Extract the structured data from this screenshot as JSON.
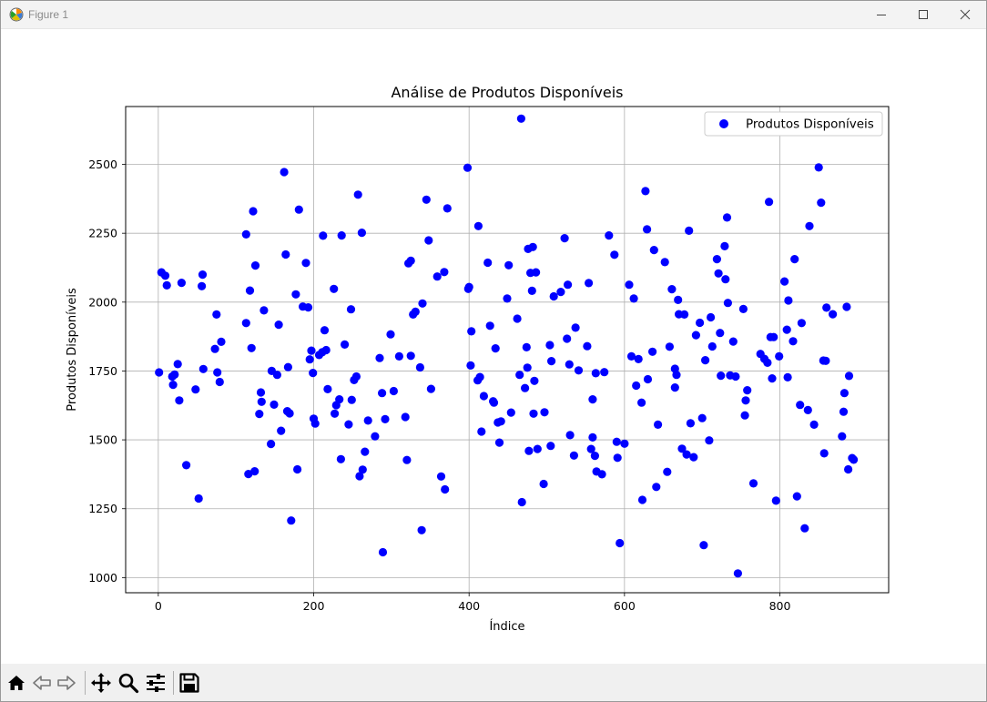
{
  "window": {
    "title": "Figure 1"
  },
  "toolbar": {
    "items": [
      "home-icon",
      "back-icon",
      "forward-icon",
      "pan-icon",
      "zoom-icon",
      "configure-subplots-icon",
      "save-icon"
    ]
  },
  "colors": {
    "marker": "#0000ff",
    "grid": "#b0b0b0",
    "axes": "#000000"
  },
  "chart_data": {
    "type": "scatter",
    "title": "Análise de Produtos Disponíveis",
    "xlabel": "Índice",
    "ylabel": "Produtos Disponíveis",
    "xlim": [
      -42,
      940
    ],
    "ylim": [
      945,
      2710
    ],
    "xticks": [
      0,
      200,
      400,
      600,
      800
    ],
    "yticks": [
      1000,
      1250,
      1500,
      1750,
      2000,
      2250,
      2500
    ],
    "grid": true,
    "legend": {
      "position": "top-right",
      "entries": [
        "Produtos Disponíveis"
      ]
    },
    "series": [
      {
        "name": "Produtos Disponíveis",
        "color": "#0000ff",
        "points": [
          [
            1,
            1745
          ],
          [
            4,
            2108
          ],
          [
            9,
            2096
          ],
          [
            11,
            2061
          ],
          [
            18,
            1730
          ],
          [
            19,
            1700
          ],
          [
            21,
            1737
          ],
          [
            25,
            1775
          ],
          [
            27,
            1643
          ],
          [
            30,
            2070
          ],
          [
            36,
            1408
          ],
          [
            48,
            1683
          ],
          [
            52,
            1287
          ],
          [
            56,
            2058
          ],
          [
            57,
            2100
          ],
          [
            58,
            1757
          ],
          [
            73,
            1830
          ],
          [
            75,
            1955
          ],
          [
            76,
            1745
          ],
          [
            79,
            1710
          ],
          [
            81,
            1856
          ],
          [
            113,
            1924
          ],
          [
            113,
            2246
          ],
          [
            116,
            1376
          ],
          [
            118,
            2042
          ],
          [
            120,
            1833
          ],
          [
            122,
            2330
          ],
          [
            124,
            1386
          ],
          [
            125,
            2133
          ],
          [
            130,
            1594
          ],
          [
            132,
            1672
          ],
          [
            133,
            1638
          ],
          [
            136,
            1970
          ],
          [
            145,
            1485
          ],
          [
            146,
            1750
          ],
          [
            149,
            1628
          ],
          [
            153,
            1736
          ],
          [
            155,
            1918
          ],
          [
            158,
            1533
          ],
          [
            162,
            2472
          ],
          [
            164,
            2173
          ],
          [
            166,
            1604
          ],
          [
            167,
            1764
          ],
          [
            169,
            1596
          ],
          [
            171,
            1207
          ],
          [
            177,
            2028
          ],
          [
            179,
            1393
          ],
          [
            181,
            2336
          ],
          [
            186,
            1984
          ],
          [
            190,
            2142
          ],
          [
            193,
            1981
          ],
          [
            195,
            1792
          ],
          [
            197,
            1824
          ],
          [
            199,
            1743
          ],
          [
            200,
            1577
          ],
          [
            202,
            1559
          ],
          [
            207,
            1808
          ],
          [
            211,
            1818
          ],
          [
            212,
            2241
          ],
          [
            214,
            1898
          ],
          [
            216,
            1826
          ],
          [
            218,
            1684
          ],
          [
            226,
            2048
          ],
          [
            227,
            1595
          ],
          [
            229,
            1626
          ],
          [
            233,
            1647
          ],
          [
            235,
            1430
          ],
          [
            236,
            2242
          ],
          [
            240,
            1846
          ],
          [
            245,
            1556
          ],
          [
            248,
            1974
          ],
          [
            249,
            1645
          ],
          [
            252,
            1717
          ],
          [
            255,
            1730
          ],
          [
            257,
            2390
          ],
          [
            259,
            1368
          ],
          [
            262,
            2252
          ],
          [
            263,
            1392
          ],
          [
            266,
            1457
          ],
          [
            270,
            1570
          ],
          [
            279,
            1513
          ],
          [
            285,
            1797
          ],
          [
            288,
            1670
          ],
          [
            289,
            1092
          ],
          [
            292,
            1575
          ],
          [
            299,
            1883
          ],
          [
            303,
            1677
          ],
          [
            310,
            1803
          ],
          [
            318,
            1583
          ],
          [
            320,
            1427
          ],
          [
            322,
            2141
          ],
          [
            325,
            1805
          ],
          [
            325,
            2150
          ],
          [
            328,
            1955
          ],
          [
            331,
            1965
          ],
          [
            337,
            1763
          ],
          [
            339,
            1172
          ],
          [
            340,
            1995
          ],
          [
            345,
            2372
          ],
          [
            348,
            2224
          ],
          [
            351,
            1685
          ],
          [
            359,
            2093
          ],
          [
            364,
            1367
          ],
          [
            368,
            2109
          ],
          [
            369,
            1320
          ],
          [
            372,
            2340
          ],
          [
            398,
            2488
          ],
          [
            399,
            2048
          ],
          [
            400,
            2055
          ],
          [
            402,
            1770
          ],
          [
            403,
            1894
          ],
          [
            414,
            1728
          ],
          [
            411,
            1716
          ],
          [
            412,
            2276
          ],
          [
            416,
            1530
          ],
          [
            419,
            1659
          ],
          [
            424,
            2143
          ],
          [
            427,
            1914
          ],
          [
            431,
            1640
          ],
          [
            432,
            1635
          ],
          [
            434,
            1832
          ],
          [
            437,
            1563
          ],
          [
            439,
            1490
          ],
          [
            441,
            1567
          ],
          [
            449,
            2013
          ],
          [
            451,
            2134
          ],
          [
            454,
            1599
          ],
          [
            462,
            1940
          ],
          [
            465,
            1736
          ],
          [
            467,
            2666
          ],
          [
            468,
            1274
          ],
          [
            472,
            1688
          ],
          [
            474,
            1836
          ],
          [
            475,
            1762
          ],
          [
            476,
            2193
          ],
          [
            477,
            1460
          ],
          [
            479,
            2106
          ],
          [
            481,
            2041
          ],
          [
            482,
            2200
          ],
          [
            483,
            1595
          ],
          [
            484,
            1714
          ],
          [
            486,
            2108
          ],
          [
            488,
            1467
          ],
          [
            496,
            1340
          ],
          [
            497,
            1600
          ],
          [
            504,
            1844
          ],
          [
            505,
            1478
          ],
          [
            506,
            1786
          ],
          [
            509,
            2021
          ],
          [
            518,
            2037
          ],
          [
            523,
            2232
          ],
          [
            526,
            1867
          ],
          [
            527,
            2063
          ],
          [
            529,
            1774
          ],
          [
            530,
            1517
          ],
          [
            535,
            1443
          ],
          [
            537,
            1907
          ],
          [
            541,
            1752
          ],
          [
            552,
            1840
          ],
          [
            554,
            2069
          ],
          [
            557,
            1467
          ],
          [
            559,
            1647
          ],
          [
            559,
            1509
          ],
          [
            562,
            1442
          ],
          [
            563,
            1742
          ],
          [
            564,
            1385
          ],
          [
            571,
            1375
          ],
          [
            574,
            1746
          ],
          [
            580,
            2242
          ],
          [
            587,
            2172
          ],
          [
            590,
            1493
          ],
          [
            591,
            1435
          ],
          [
            594,
            1125
          ],
          [
            600,
            1486
          ],
          [
            606,
            2063
          ],
          [
            609,
            1803
          ],
          [
            612,
            2013
          ],
          [
            615,
            1697
          ],
          [
            618,
            1793
          ],
          [
            622,
            1635
          ],
          [
            623,
            1282
          ],
          [
            627,
            2403
          ],
          [
            629,
            2264
          ],
          [
            630,
            1720
          ],
          [
            636,
            1820
          ],
          [
            638,
            2189
          ],
          [
            641,
            1329
          ],
          [
            643,
            1555
          ],
          [
            652,
            2145
          ],
          [
            655,
            1384
          ],
          [
            658,
            1838
          ],
          [
            661,
            2047
          ],
          [
            665,
            1690
          ],
          [
            665,
            1758
          ],
          [
            667,
            1736
          ],
          [
            669,
            2008
          ],
          [
            670,
            1956
          ],
          [
            674,
            1468
          ],
          [
            677,
            1955
          ],
          [
            680,
            1447
          ],
          [
            683,
            2259
          ],
          [
            685,
            1560
          ],
          [
            689,
            1437
          ],
          [
            692,
            1880
          ],
          [
            697,
            1925
          ],
          [
            700,
            1579
          ],
          [
            702,
            1118
          ],
          [
            704,
            1789
          ],
          [
            709,
            1498
          ],
          [
            711,
            1945
          ],
          [
            713,
            1839
          ],
          [
            719,
            2156
          ],
          [
            721,
            2104
          ],
          [
            723,
            1888
          ],
          [
            724,
            1733
          ],
          [
            729,
            2203
          ],
          [
            730,
            2083
          ],
          [
            732,
            2307
          ],
          [
            733,
            1997
          ],
          [
            736,
            1734
          ],
          [
            740,
            1857
          ],
          [
            743,
            1730
          ],
          [
            746,
            1015
          ],
          [
            753,
            1975
          ],
          [
            755,
            1589
          ],
          [
            756,
            1643
          ],
          [
            758,
            1680
          ],
          [
            766,
            1342
          ],
          [
            775,
            1812
          ],
          [
            780,
            1794
          ],
          [
            784,
            1780
          ],
          [
            786,
            2364
          ],
          [
            788,
            1873
          ],
          [
            790,
            1723
          ],
          [
            792,
            1873
          ],
          [
            795,
            1279
          ],
          [
            799,
            1803
          ],
          [
            806,
            2075
          ],
          [
            809,
            1900
          ],
          [
            810,
            1727
          ],
          [
            811,
            2006
          ],
          [
            817,
            1858
          ],
          [
            819,
            2156
          ],
          [
            822,
            1295
          ],
          [
            826,
            1627
          ],
          [
            828,
            1924
          ],
          [
            832,
            1179
          ],
          [
            836,
            1608
          ],
          [
            838,
            2276
          ],
          [
            844,
            1555
          ],
          [
            850,
            2489
          ],
          [
            853,
            2361
          ],
          [
            856,
            1788
          ],
          [
            857,
            1451
          ],
          [
            859,
            1787
          ],
          [
            860,
            1980
          ],
          [
            868,
            1956
          ],
          [
            880,
            1513
          ],
          [
            882,
            1602
          ],
          [
            883,
            1670
          ],
          [
            886,
            1983
          ],
          [
            888,
            1393
          ],
          [
            889,
            1732
          ],
          [
            893,
            1434
          ],
          [
            895,
            1428
          ]
        ]
      }
    ]
  }
}
